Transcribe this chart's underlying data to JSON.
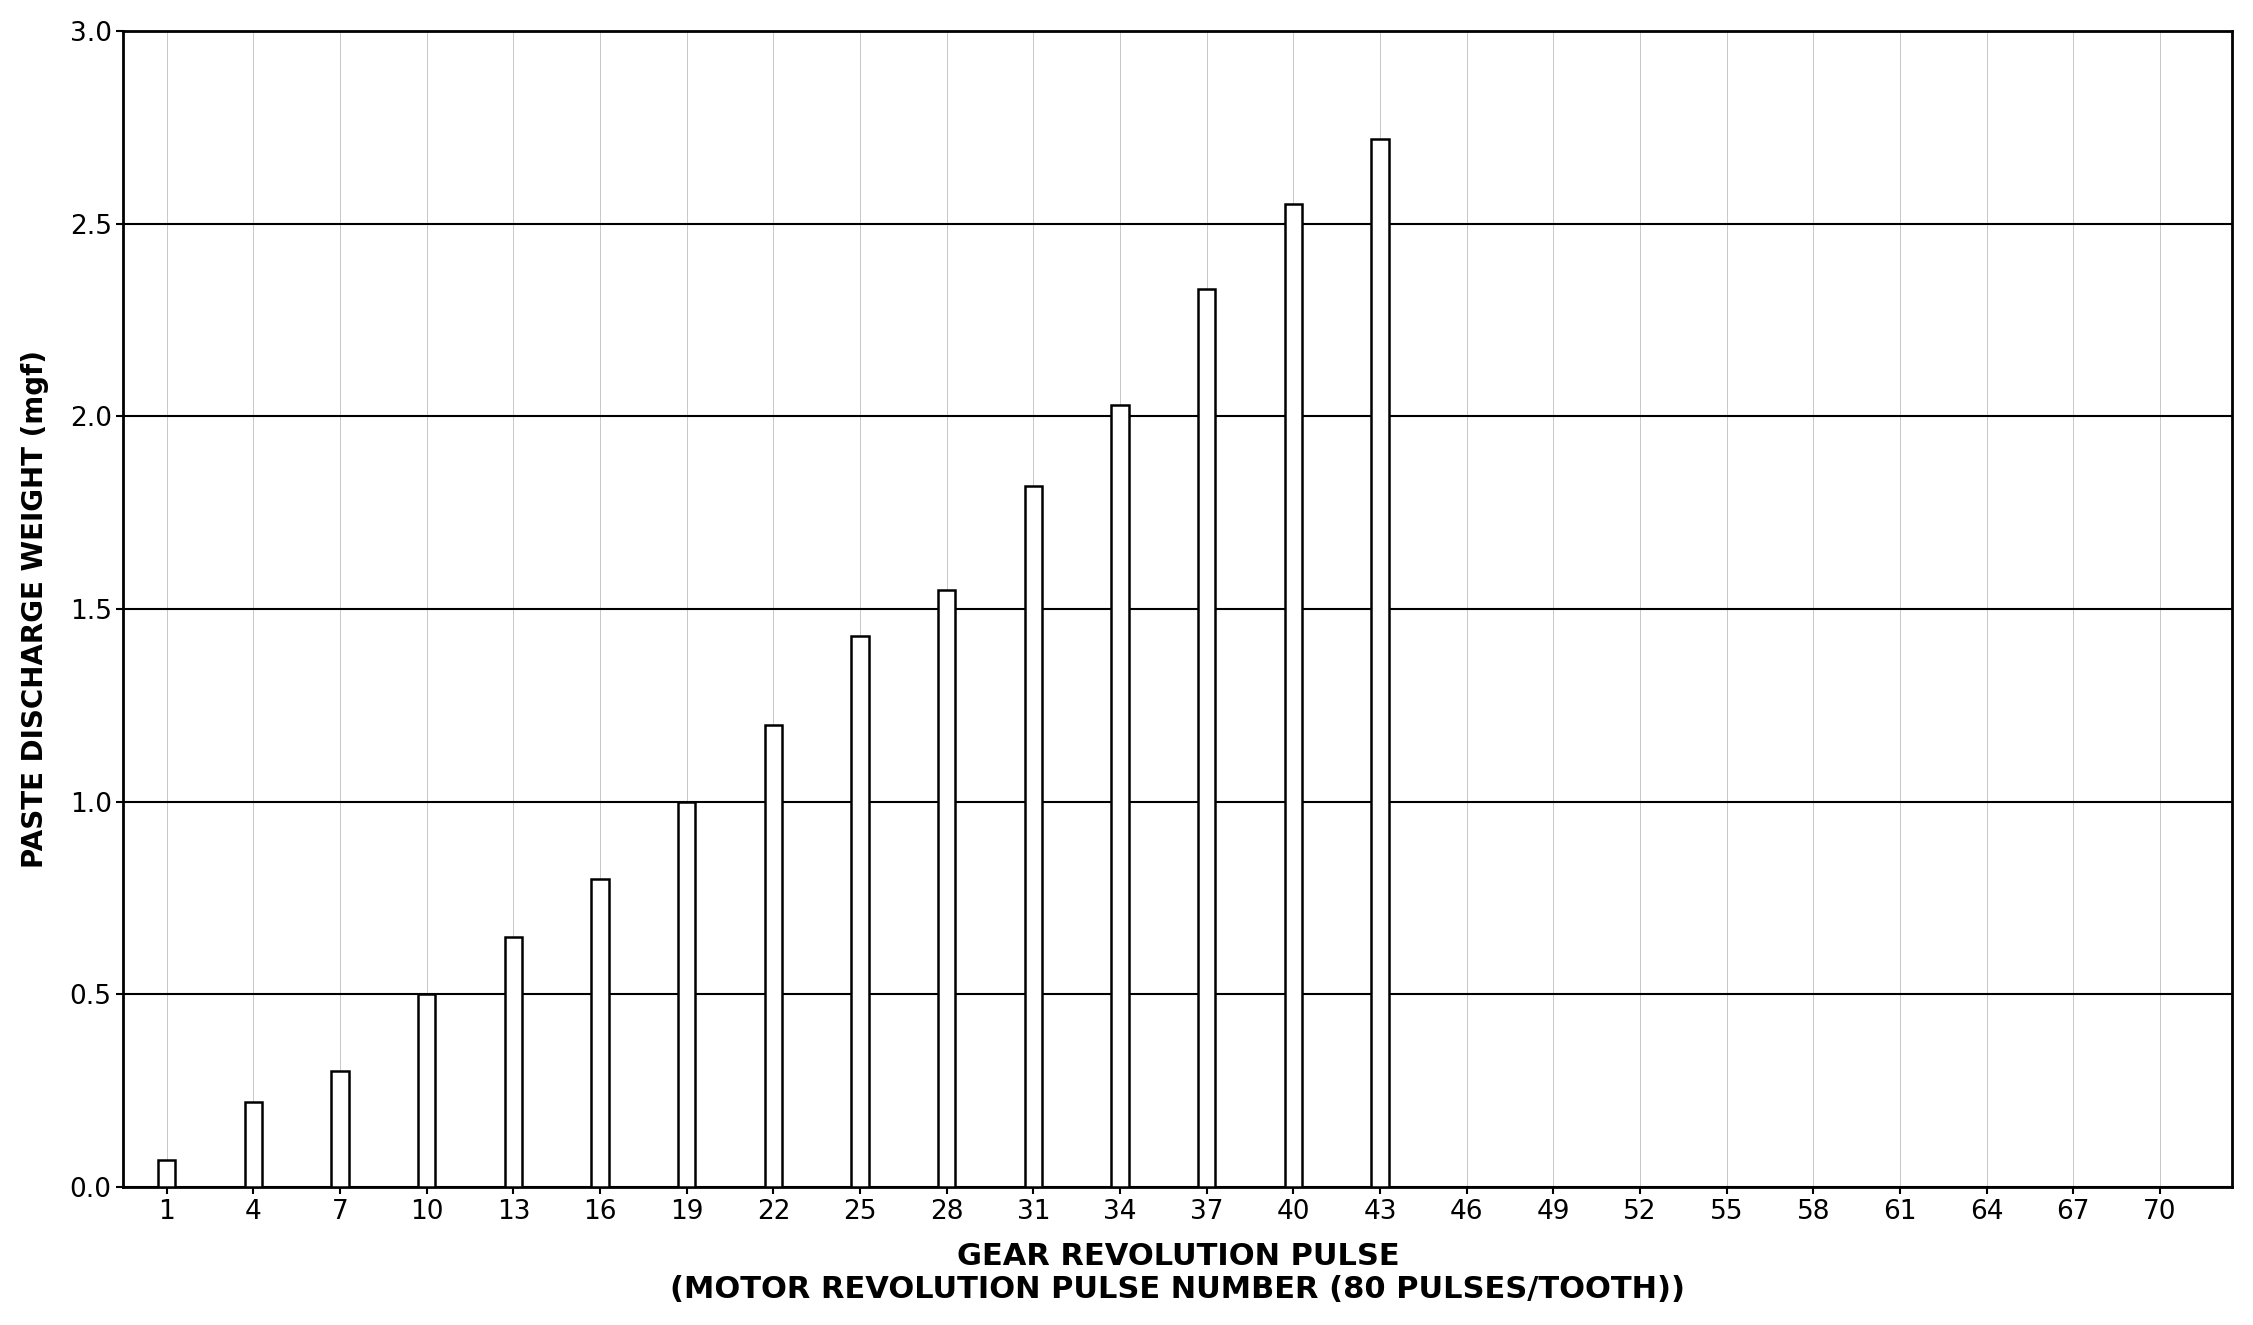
{
  "bar_positions": [
    1,
    4,
    7,
    10,
    13,
    16,
    19,
    22,
    25,
    28,
    31,
    34,
    37,
    40,
    43,
    46,
    49,
    52,
    55,
    58,
    61,
    64,
    67,
    70
  ],
  "bar_heights": [
    0.07,
    0.22,
    0.3,
    0.5,
    0.65,
    0.8,
    1.0,
    1.2,
    1.43,
    1.55,
    1.82,
    2.03,
    2.33,
    2.55,
    2.72,
    0,
    0,
    0,
    0,
    0,
    0,
    0,
    0,
    0
  ],
  "xlabel_line1": "GEAR REVOLUTION PULSE",
  "xlabel_line2": "(MOTOR REVOLUTION PULSE NUMBER (80 PULSES/TOOTH))",
  "ylabel": "PASTE DISCHARGE WEIGHT (mgf)",
  "ylim": [
    0,
    3
  ],
  "yticks": [
    0,
    0.5,
    1.0,
    1.5,
    2.0,
    2.5,
    3.0
  ],
  "xtick_labels": [
    "1",
    "4",
    "7",
    "10",
    "13",
    "16",
    "19",
    "22",
    "25",
    "28",
    "31",
    "34",
    "37",
    "40",
    "43",
    "46",
    "49",
    "52",
    "55",
    "58",
    "61",
    "64",
    "67",
    "70"
  ],
  "bar_width": 0.6,
  "bar_color": "white",
  "bar_edgecolor": "black",
  "background_color": "white",
  "grid_color": "black",
  "axis_linewidth": 2.0,
  "bar_linewidth": 1.8,
  "grid_linewidth": 1.5,
  "xlabel_fontsize": 22,
  "ylabel_fontsize": 20,
  "tick_fontsize": 19,
  "xlim_left": -0.5,
  "xlim_right": 72.5
}
